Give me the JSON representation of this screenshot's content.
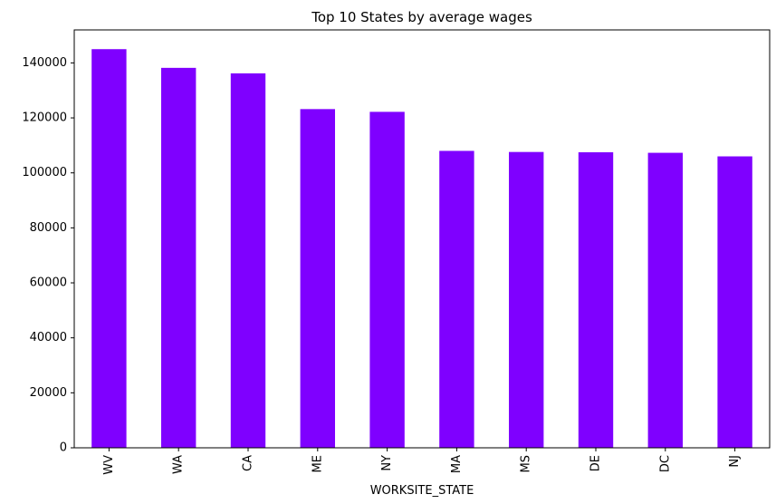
{
  "chart_data": {
    "type": "bar",
    "title": "Top 10 States by average wages",
    "xlabel": "WORKSITE_STATE",
    "ylabel": "",
    "categories": [
      "WV",
      "WA",
      "CA",
      "ME",
      "NY",
      "MA",
      "MS",
      "DE",
      "DC",
      "NJ"
    ],
    "values": [
      145000,
      138200,
      136200,
      123200,
      122200,
      108000,
      107600,
      107500,
      107300,
      106000
    ],
    "ylim": [
      0,
      152000
    ],
    "yticks": [
      0,
      20000,
      40000,
      60000,
      80000,
      100000,
      120000,
      140000
    ],
    "ytick_labels": [
      "0",
      "20000",
      "40000",
      "60000",
      "80000",
      "100000",
      "120000",
      "140000"
    ],
    "bar_color": "#7f00ff",
    "grid": false,
    "legend": "none"
  }
}
